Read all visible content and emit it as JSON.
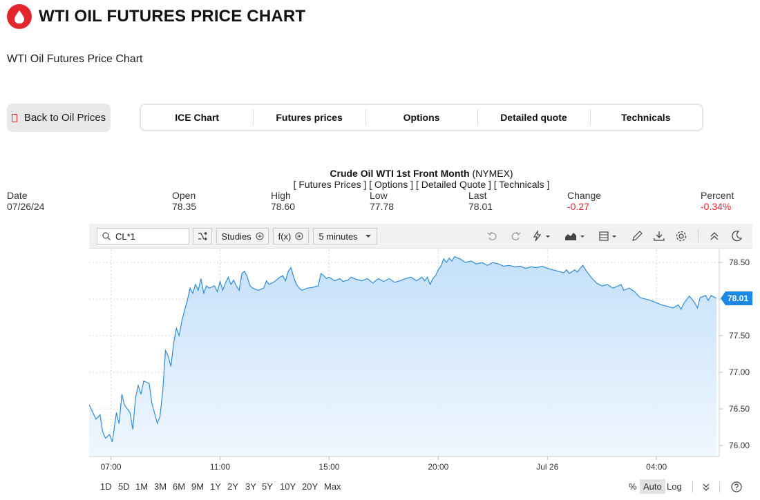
{
  "header": {
    "title": "WTI OIL FUTURES PRICE CHART",
    "subtitle": "WTI Oil Futures Price Chart",
    "back_label": "Back to Oil Prices",
    "tabs": [
      {
        "label": "ICE Chart"
      },
      {
        "label": "Futures prices"
      },
      {
        "label": "Options"
      },
      {
        "label": "Detailed quote"
      },
      {
        "label": "Technicals"
      }
    ]
  },
  "quote": {
    "name": "Crude Oil WTI 1st Front Month",
    "exchange": "(NYMEX)",
    "links": "[ Futures Prices ] [ Options ] [ Detailed Quote ] [ Technicals ]",
    "date_label": "Date",
    "date": "07/26/24",
    "open_label": "Open",
    "open": "78.35",
    "high_label": "High",
    "high": "78.60",
    "low_label": "Low",
    "low": "77.78",
    "last_label": "Last",
    "last": "78.01",
    "change_label": "Change",
    "change": "-0.27",
    "percent_label": "Percent",
    "percent": "-0.34%"
  },
  "toolbar": {
    "symbol": "CL*1",
    "studies_label": "Studies",
    "fx_label": "f(x)",
    "interval_label": "5 minutes"
  },
  "ranges": [
    "1D",
    "5D",
    "1M",
    "3M",
    "6M",
    "9M",
    "1Y",
    "2Y",
    "3Y",
    "5Y",
    "10Y",
    "20Y",
    "Max"
  ],
  "scale_opts": {
    "pct": "%",
    "auto": "Auto",
    "log": "Log"
  },
  "colors": {
    "accent": "#e1262d",
    "line": "#2e8bd8",
    "area": "#cfe6fb",
    "last_badge": "#1e88e5",
    "negative": "#e1262d"
  },
  "chart_data": {
    "type": "area",
    "ylim": [
      75.85,
      78.68
    ],
    "y_ticks": [
      76.0,
      76.5,
      77.0,
      77.5,
      78.0,
      78.5
    ],
    "y_tick_labels": [
      "76.00",
      "76.50",
      "77.00",
      "77.50",
      "78.00",
      "78.50"
    ],
    "x_ticks": [
      {
        "label": "07:00",
        "x": 0.8
      },
      {
        "label": "11:00",
        "x": 4.8
      },
      {
        "label": "15:00",
        "x": 8.8
      },
      {
        "label": "20:00",
        "x": 12.8
      },
      {
        "label": "Jul 26",
        "x": 16.8
      },
      {
        "label": "04:00",
        "x": 20.8
      }
    ],
    "xlim": [
      0,
      23.1
    ],
    "last_value": "78.01",
    "series": [
      {
        "points": [
          [
            0.0,
            76.56
          ],
          [
            0.25,
            76.36
          ],
          [
            0.4,
            76.42
          ],
          [
            0.5,
            76.18
          ],
          [
            0.6,
            76.1
          ],
          [
            0.75,
            76.15
          ],
          [
            0.85,
            76.05
          ],
          [
            1.0,
            76.45
          ],
          [
            1.1,
            76.3
          ],
          [
            1.2,
            76.7
          ],
          [
            1.3,
            76.55
          ],
          [
            1.5,
            76.45
          ],
          [
            1.6,
            76.22
          ],
          [
            1.7,
            76.65
          ],
          [
            1.8,
            76.82
          ],
          [
            1.9,
            76.7
          ],
          [
            2.0,
            76.88
          ],
          [
            2.2,
            76.85
          ],
          [
            2.3,
            76.58
          ],
          [
            2.5,
            76.3
          ],
          [
            2.6,
            76.4
          ],
          [
            2.7,
            76.75
          ],
          [
            2.8,
            77.3
          ],
          [
            2.9,
            77.22
          ],
          [
            3.0,
            77.08
          ],
          [
            3.1,
            77.4
          ],
          [
            3.2,
            77.6
          ],
          [
            3.3,
            77.5
          ],
          [
            3.4,
            77.7
          ],
          [
            3.5,
            77.85
          ],
          [
            3.6,
            77.98
          ],
          [
            3.7,
            78.15
          ],
          [
            3.8,
            78.08
          ],
          [
            3.9,
            78.2
          ],
          [
            4.0,
            78.12
          ],
          [
            4.1,
            78.28
          ],
          [
            4.2,
            78.08
          ],
          [
            4.3,
            78.18
          ],
          [
            4.4,
            78.15
          ],
          [
            4.6,
            78.18
          ],
          [
            4.7,
            78.1
          ],
          [
            4.8,
            78.24
          ],
          [
            4.9,
            78.12
          ],
          [
            5.0,
            78.22
          ],
          [
            5.1,
            78.3
          ],
          [
            5.2,
            78.2
          ],
          [
            5.3,
            78.26
          ],
          [
            5.4,
            78.18
          ],
          [
            5.5,
            78.12
          ],
          [
            5.6,
            78.35
          ],
          [
            5.7,
            78.38
          ],
          [
            5.8,
            78.3
          ],
          [
            5.9,
            78.18
          ],
          [
            6.0,
            78.15
          ],
          [
            6.2,
            78.12
          ],
          [
            6.4,
            78.15
          ],
          [
            6.5,
            78.25
          ],
          [
            6.6,
            78.2
          ],
          [
            6.8,
            78.24
          ],
          [
            7.0,
            78.3
          ],
          [
            7.1,
            78.32
          ],
          [
            7.2,
            78.25
          ],
          [
            7.3,
            78.38
          ],
          [
            7.4,
            78.43
          ],
          [
            7.5,
            78.3
          ],
          [
            7.6,
            78.2
          ],
          [
            7.7,
            78.15
          ],
          [
            7.8,
            78.12
          ],
          [
            8.0,
            78.15
          ],
          [
            8.2,
            78.16
          ],
          [
            8.4,
            78.18
          ],
          [
            8.5,
            78.35
          ],
          [
            8.6,
            78.32
          ],
          [
            8.7,
            78.28
          ],
          [
            8.8,
            78.3
          ],
          [
            9.0,
            78.25
          ],
          [
            9.2,
            78.28
          ],
          [
            9.3,
            78.24
          ],
          [
            9.5,
            78.26
          ],
          [
            9.6,
            78.3
          ],
          [
            9.8,
            78.27
          ],
          [
            10.0,
            78.25
          ],
          [
            10.2,
            78.28
          ],
          [
            10.4,
            78.22
          ],
          [
            10.6,
            78.28
          ],
          [
            10.8,
            78.24
          ],
          [
            11.0,
            78.28
          ],
          [
            11.2,
            78.23
          ],
          [
            11.4,
            78.25
          ],
          [
            11.6,
            78.28
          ],
          [
            11.8,
            78.3
          ],
          [
            12.0,
            78.25
          ],
          [
            12.2,
            78.3
          ],
          [
            12.3,
            78.25
          ],
          [
            12.4,
            78.3
          ],
          [
            12.5,
            78.2
          ],
          [
            12.6,
            78.28
          ],
          [
            12.7,
            78.32
          ],
          [
            12.8,
            78.4
          ],
          [
            12.9,
            78.45
          ],
          [
            13.0,
            78.55
          ],
          [
            13.1,
            78.5
          ],
          [
            13.2,
            78.56
          ],
          [
            13.3,
            78.52
          ],
          [
            13.4,
            78.58
          ],
          [
            13.6,
            78.55
          ],
          [
            13.8,
            78.5
          ],
          [
            14.0,
            78.52
          ],
          [
            14.2,
            78.48
          ],
          [
            14.4,
            78.5
          ],
          [
            14.6,
            78.46
          ],
          [
            14.8,
            78.5
          ],
          [
            15.0,
            78.48
          ],
          [
            15.2,
            78.45
          ],
          [
            15.4,
            78.46
          ],
          [
            15.6,
            78.44
          ],
          [
            15.8,
            78.45
          ],
          [
            16.0,
            78.42
          ],
          [
            16.2,
            78.44
          ],
          [
            16.4,
            78.43
          ],
          [
            16.6,
            78.45
          ],
          [
            16.8,
            78.42
          ],
          [
            17.0,
            78.4
          ],
          [
            17.2,
            78.38
          ],
          [
            17.4,
            78.36
          ],
          [
            17.5,
            78.4
          ],
          [
            17.6,
            78.35
          ],
          [
            17.8,
            78.4
          ],
          [
            17.9,
            78.37
          ],
          [
            18.0,
            78.42
          ],
          [
            18.1,
            78.46
          ],
          [
            18.2,
            78.4
          ],
          [
            18.4,
            78.3
          ],
          [
            18.6,
            78.22
          ],
          [
            18.8,
            78.18
          ],
          [
            19.0,
            78.2
          ],
          [
            19.2,
            78.15
          ],
          [
            19.4,
            78.18
          ],
          [
            19.5,
            78.2
          ],
          [
            19.6,
            78.12
          ],
          [
            19.8,
            78.15
          ],
          [
            20.0,
            78.1
          ],
          [
            20.2,
            78.02
          ],
          [
            20.4,
            78.0
          ],
          [
            20.6,
            77.98
          ],
          [
            20.8,
            77.95
          ],
          [
            21.0,
            77.92
          ],
          [
            21.2,
            77.9
          ],
          [
            21.4,
            77.88
          ],
          [
            21.6,
            77.92
          ],
          [
            21.7,
            77.86
          ],
          [
            21.8,
            77.94
          ],
          [
            22.0,
            78.04
          ],
          [
            22.1,
            78.0
          ],
          [
            22.2,
            77.95
          ],
          [
            22.3,
            77.88
          ],
          [
            22.4,
            78.02
          ],
          [
            22.6,
            78.05
          ],
          [
            22.7,
            77.98
          ],
          [
            22.8,
            78.05
          ],
          [
            23.0,
            78.01
          ]
        ]
      }
    ]
  }
}
